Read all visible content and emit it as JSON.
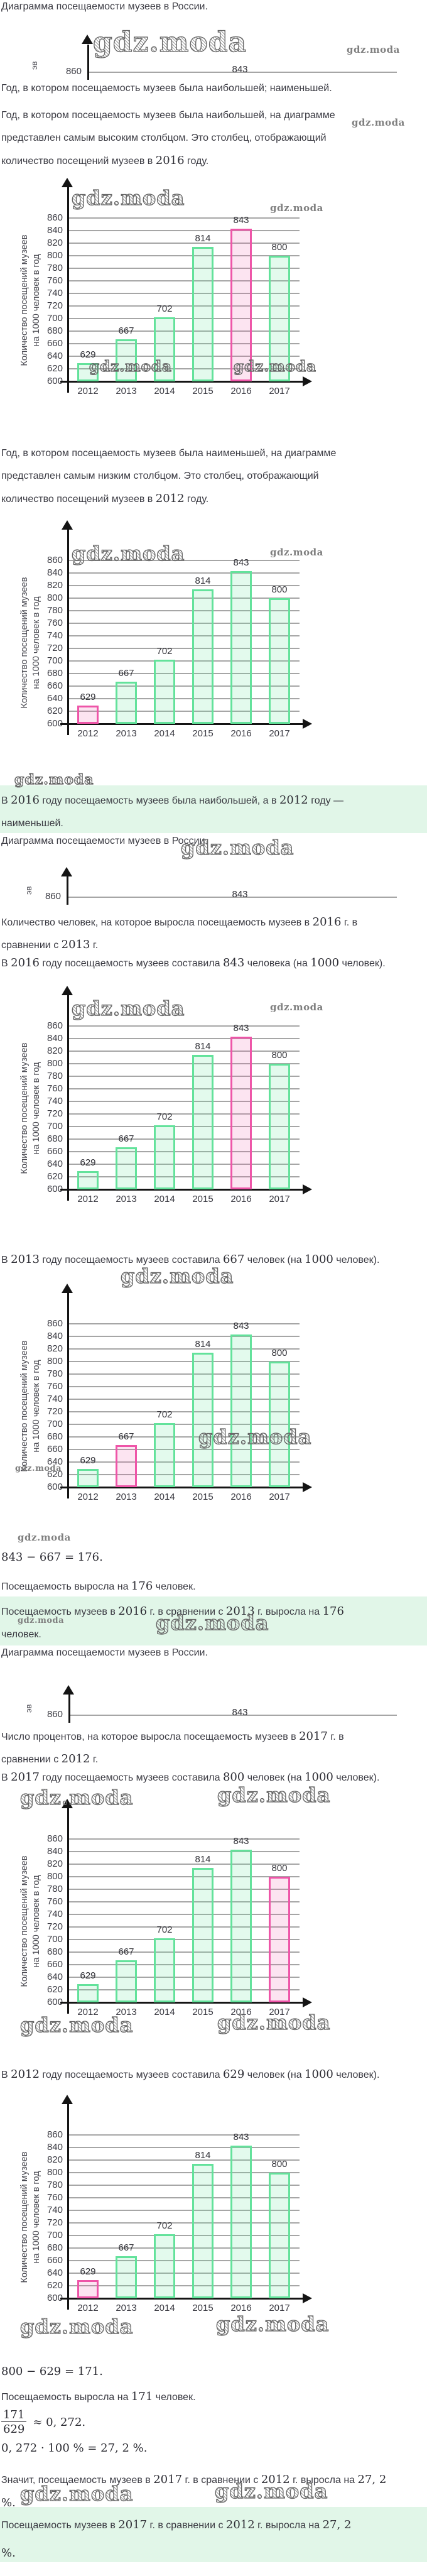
{
  "watermark_text": "gdz.moda",
  "blocks": {
    "title": "Диаграмма посещаемости музеев в России.",
    "p_max_min_q": "Год, в котором посещаемость музеев была наибольшей; наименьшей.",
    "p_max_expl": [
      "Год, в котором посещаемость музеев была наибольшей, на диаграмме",
      "представлен самым высоким столбцом. Это столбец, отображающий",
      "количество посещений музеев в $2016$ году."
    ],
    "p_min_expl": [
      "Год, в котором посещаемость музеев была наименьшей, на диаграмме",
      "представлен самым низким столбцом. Это столбец, отображающий",
      "количество посещений музеев в $2012$ году."
    ],
    "gb1": [
      "В $2016$ году посещаемость музеев была наибольшей, а в $2012$ году —",
      "наименьшей."
    ],
    "p_q2": [
      "Количество человек, на которое выросла посещаемость музеев в $2016$ г. в",
      "сравнении с $2013$ г."
    ],
    "p_2016": "В $2016$ году посещаемость музеев составила $843$ человека (на $1000$ человек).",
    "p_2013": "В $2013$ году посещаемость музеев составила $667$ человек (на $1000$ человек).",
    "f1": "843 − 667 = 176.",
    "p_grew176": "Посещаемость выросла на $176$ человек.",
    "gb2": [
      "Посещаемость музеев в $2016$ г. в сравнении с $2013$ г. выросла на $176$",
      "человек."
    ],
    "p_q3": [
      "Число процентов, на которое выросла посещаемость музеев в $2017$ г. в",
      "сравнении с $2012$ г."
    ],
    "p_2017": "В $2017$ году посещаемость музеев составила $800$ человек (на $1000$ человек).",
    "p_2012": "В $2012$ году посещаемость музеев составила $629$ человек (на $1000$ человек).",
    "f2": "800 − 629 = 171.",
    "p_grew171": "Посещаемость выросла на $171$ человек.",
    "frac": {
      "num": "171",
      "den": "629",
      "tail": "≈ 0, 272."
    },
    "f3": "0, 272 · 100 % = 27, 2 %.",
    "p_concl": [
      "Значит, посещаемость музеев в $2017$ г. в сравнении с $2012$ г. выросла на $27, 2$",
      "$%.$"
    ],
    "gb3": [
      "Посещаемость музеев в $2017$ г. в сравнении с $2012$ г. выросла на $27, 2$",
      "$%.$"
    ]
  },
  "chart_data": {
    "type": "bar",
    "title": "Диаграмма посещаемости музеев в России.",
    "categories": [
      "2012",
      "2013",
      "2014",
      "2015",
      "2016",
      "2017"
    ],
    "values": [
      629,
      667,
      702,
      814,
      843,
      800
    ],
    "ylabel": [
      "Количество посещений музеев",
      "на 1000 человек в год"
    ],
    "xlabel": "",
    "ylim": [
      600,
      880
    ],
    "yticks": [
      600,
      620,
      640,
      660,
      680,
      700,
      720,
      740,
      760,
      780,
      800,
      820,
      840,
      860
    ],
    "grid": true,
    "legend": "none",
    "bar_fill": "rgba(102,227,157,0.18)",
    "bar_border": "#63e29b",
    "highlight_fill": "rgba(238,85,168,0.16)",
    "highlight_border": "#ee55a8",
    "instances": [
      {
        "name": "chart-max-2016",
        "highlight": "2016"
      },
      {
        "name": "chart-min-2012",
        "highlight": "2012"
      },
      {
        "name": "chart-value-2016",
        "highlight": "2016"
      },
      {
        "name": "chart-value-2013",
        "highlight": "2013"
      },
      {
        "name": "chart-value-2017",
        "highlight": "2017"
      },
      {
        "name": "chart-value-2012",
        "highlight": "2012"
      }
    ],
    "mini_chart": {
      "visible_ytick": "860",
      "visible_value_label": "843",
      "y_axis_fragment": "эв",
      "occurrences": 3
    }
  }
}
